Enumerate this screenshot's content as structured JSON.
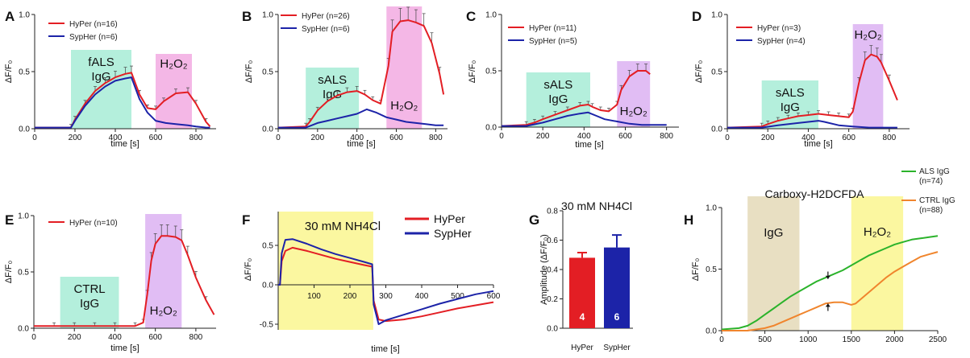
{
  "figure": {
    "colors": {
      "hyper": "#e31e24",
      "sypher": "#1c23a8",
      "als": "#2bb32b",
      "ctrl": "#f0852d",
      "green_region": "#b4efdc",
      "pink_region": "#f4b7e6",
      "violet_region": "#e1bdf4",
      "yellow_region": "#fbf7a0",
      "tan_region": "#e8dfc2"
    }
  },
  "chart_data": [
    {
      "panel": "A",
      "type": "line",
      "xlabel": "time [s]",
      "ylabel": "ΔF/F₀",
      "xlim": [
        0,
        900
      ],
      "ylim": [
        0,
        1.0
      ],
      "xticks": [
        "0",
        "200",
        "400",
        "600",
        "800"
      ],
      "yticks": [
        "0.0",
        "0.5",
        "1.0"
      ],
      "legend": [
        "HyPer (n=16)",
        "SypHer (n=6)"
      ],
      "regions": [
        {
          "label": [
            "fALS",
            "IgG"
          ],
          "x": [
            180,
            480
          ],
          "color": "green"
        },
        {
          "label": [
            "H₂O₂"
          ],
          "x": [
            600,
            780
          ],
          "color": "pink"
        }
      ],
      "series": [
        {
          "name": "HyPer",
          "x": [
            0,
            180,
            200,
            250,
            300,
            350,
            400,
            450,
            480,
            520,
            560,
            600,
            640,
            700,
            760,
            800,
            850,
            870
          ],
          "y": [
            0.01,
            0.01,
            0.08,
            0.22,
            0.33,
            0.4,
            0.45,
            0.48,
            0.49,
            0.3,
            0.18,
            0.17,
            0.24,
            0.31,
            0.32,
            0.22,
            0.06,
            0.02
          ]
        },
        {
          "name": "SypHer",
          "x": [
            0,
            180,
            200,
            250,
            300,
            350,
            400,
            450,
            480,
            520,
            560,
            600,
            650,
            700,
            760,
            800,
            850,
            870
          ],
          "y": [
            0.01,
            0.01,
            0.07,
            0.2,
            0.3,
            0.37,
            0.42,
            0.44,
            0.45,
            0.26,
            0.14,
            0.07,
            0.05,
            0.04,
            0.03,
            0.02,
            0.01,
            0.01
          ]
        }
      ]
    },
    {
      "panel": "B",
      "type": "line",
      "xlabel": "time [s]",
      "ylabel": "ΔF/F₀",
      "xlim": [
        0,
        860
      ],
      "ylim": [
        0,
        1.0
      ],
      "xticks": [
        "0",
        "200",
        "400",
        "600",
        "800"
      ],
      "yticks": [
        "0.0",
        "0.5",
        "1.0"
      ],
      "legend": [
        "HyPer (n=26)",
        "SypHer (n=6)"
      ],
      "regions": [
        {
          "label": [
            "sALS",
            "IgG"
          ],
          "x": [
            140,
            410
          ],
          "color": "green"
        },
        {
          "label": [
            "H₂O₂"
          ],
          "x": [
            550,
            730
          ],
          "color": "pink"
        }
      ],
      "series": [
        {
          "name": "HyPer",
          "x": [
            0,
            140,
            160,
            200,
            250,
            300,
            350,
            400,
            440,
            480,
            520,
            560,
            580,
            620,
            660,
            700,
            740,
            780,
            820,
            840
          ],
          "y": [
            0.01,
            0.02,
            0.06,
            0.16,
            0.24,
            0.29,
            0.32,
            0.33,
            0.3,
            0.25,
            0.22,
            0.55,
            0.85,
            0.94,
            0.95,
            0.93,
            0.9,
            0.75,
            0.48,
            0.3
          ]
        },
        {
          "name": "SypHer",
          "x": [
            0,
            140,
            200,
            250,
            300,
            350,
            400,
            450,
            500,
            550,
            600,
            650,
            700,
            750,
            800,
            840
          ],
          "y": [
            0.01,
            0.01,
            0.05,
            0.07,
            0.09,
            0.11,
            0.13,
            0.17,
            0.14,
            0.1,
            0.08,
            0.06,
            0.05,
            0.04,
            0.03,
            0.03
          ]
        }
      ]
    },
    {
      "panel": "C",
      "type": "line",
      "xlabel": "time [s]",
      "ylabel": "ΔF/F₀",
      "xlim": [
        0,
        860
      ],
      "ylim": [
        0,
        1.0
      ],
      "xticks": [
        "0",
        "200",
        "400",
        "600",
        "800"
      ],
      "yticks": [
        "0.0",
        "0.5",
        "1.0"
      ],
      "legend": [
        "HyPer (n=11)",
        "SypHer (n=5)"
      ],
      "regions": [
        {
          "label": [
            "sALS",
            "IgG"
          ],
          "x": [
            120,
            430
          ],
          "color": "green"
        },
        {
          "label": [
            "H₂O₂"
          ],
          "x": [
            560,
            720
          ],
          "color": "violet"
        }
      ],
      "series": [
        {
          "name": "HyPer",
          "x": [
            0,
            120,
            160,
            200,
            260,
            320,
            380,
            420,
            440,
            480,
            520,
            560,
            580,
            620,
            660,
            700,
            720
          ],
          "y": [
            0.01,
            0.02,
            0.04,
            0.07,
            0.11,
            0.15,
            0.19,
            0.2,
            0.18,
            0.15,
            0.14,
            0.2,
            0.33,
            0.45,
            0.5,
            0.5,
            0.47
          ]
        },
        {
          "name": "SypHer",
          "x": [
            0,
            120,
            200,
            260,
            320,
            380,
            420,
            460,
            500,
            560,
            620,
            680,
            720,
            800
          ],
          "y": [
            0.01,
            0.01,
            0.04,
            0.07,
            0.1,
            0.12,
            0.13,
            0.1,
            0.07,
            0.05,
            0.03,
            0.02,
            0.02,
            0.02
          ]
        }
      ]
    },
    {
      "panel": "D",
      "type": "line",
      "xlabel": "time [s]",
      "ylabel": "ΔF/F₀",
      "xlim": [
        0,
        900
      ],
      "ylim": [
        0,
        1.0
      ],
      "xticks": [
        "0",
        "200",
        "400",
        "600",
        "800"
      ],
      "yticks": [
        "0.0",
        "0.5",
        "1.0"
      ],
      "legend": [
        "HyPer (n=3)",
        "SypHer (n=4)"
      ],
      "regions": [
        {
          "label": [
            "sALS",
            "IgG"
          ],
          "x": [
            170,
            450
          ],
          "color": "green"
        },
        {
          "label": [
            "H₂O₂"
          ],
          "x": [
            620,
            770
          ],
          "color": "violet"
        }
      ],
      "series": [
        {
          "name": "HyPer",
          "x": [
            0,
            170,
            200,
            250,
            300,
            350,
            400,
            450,
            500,
            550,
            600,
            620,
            650,
            680,
            710,
            740,
            760,
            800,
            840
          ],
          "y": [
            0.01,
            0.02,
            0.04,
            0.07,
            0.09,
            0.11,
            0.12,
            0.13,
            0.12,
            0.11,
            0.1,
            0.15,
            0.4,
            0.6,
            0.65,
            0.63,
            0.58,
            0.42,
            0.25
          ]
        },
        {
          "name": "SypHer",
          "x": [
            0,
            170,
            250,
            350,
            450,
            480,
            550,
            620,
            700,
            800,
            840
          ],
          "y": [
            0.01,
            0.01,
            0.03,
            0.05,
            0.07,
            0.06,
            0.03,
            0.02,
            0.01,
            0.01,
            0.01
          ]
        }
      ]
    },
    {
      "panel": "E",
      "type": "line",
      "xlabel": "time [s]",
      "ylabel": "ΔF/F₀",
      "xlim": [
        0,
        900
      ],
      "ylim": [
        0,
        1.0
      ],
      "xticks": [
        "0",
        "200",
        "400",
        "600",
        "800"
      ],
      "yticks": [
        "0.0",
        "0.5",
        "1.0"
      ],
      "legend": [
        "HyPer (n=10)"
      ],
      "regions": [
        {
          "label": [
            "CTRL",
            "IgG"
          ],
          "x": [
            130,
            420
          ],
          "color": "green"
        },
        {
          "label": [
            "H₂O₂"
          ],
          "x": [
            550,
            730
          ],
          "color": "violet"
        }
      ],
      "series": [
        {
          "name": "HyPer",
          "x": [
            0,
            100,
            200,
            300,
            400,
            500,
            540,
            560,
            580,
            600,
            630,
            660,
            700,
            730,
            760,
            800,
            850,
            890
          ],
          "y": [
            0.02,
            0.02,
            0.02,
            0.02,
            0.02,
            0.02,
            0.05,
            0.3,
            0.6,
            0.75,
            0.82,
            0.82,
            0.81,
            0.78,
            0.65,
            0.45,
            0.25,
            0.12
          ]
        }
      ]
    },
    {
      "panel": "F",
      "type": "line",
      "xlabel": "time [s]",
      "ylabel": "ΔF/F₀",
      "xlim": [
        0,
        600
      ],
      "ylim": [
        -0.6,
        0.8
      ],
      "xticks": [
        "100",
        "200",
        "300",
        "400",
        "500",
        "600"
      ],
      "yticks": [
        "-0.5",
        "0.0",
        "0.5"
      ],
      "legend": [
        "HyPer",
        "SypHer"
      ],
      "regions": [
        {
          "label": [
            "30 mM NH4Cl"
          ],
          "x": [
            0,
            265
          ],
          "color": "yellow"
        }
      ],
      "series": [
        {
          "name": "HyPer",
          "x": [
            0,
            5,
            10,
            20,
            40,
            80,
            120,
            160,
            200,
            240,
            262,
            266,
            280,
            300,
            350,
            400,
            450,
            500,
            550,
            600
          ],
          "y": [
            0,
            0,
            0.3,
            0.43,
            0.47,
            0.43,
            0.38,
            0.33,
            0.29,
            0.25,
            0.23,
            -0.2,
            -0.44,
            -0.46,
            -0.44,
            -0.4,
            -0.35,
            -0.3,
            -0.26,
            -0.22
          ]
        },
        {
          "name": "SypHer",
          "x": [
            0,
            5,
            10,
            20,
            40,
            80,
            120,
            160,
            200,
            240,
            262,
            266,
            280,
            300,
            350,
            400,
            450,
            500,
            550,
            600
          ],
          "y": [
            0,
            0,
            0.4,
            0.57,
            0.58,
            0.52,
            0.45,
            0.39,
            0.34,
            0.29,
            0.26,
            -0.25,
            -0.5,
            -0.45,
            -0.38,
            -0.31,
            -0.24,
            -0.18,
            -0.12,
            -0.08
          ]
        }
      ]
    },
    {
      "panel": "G",
      "type": "bar",
      "title": "30 mM NH4Cl",
      "ylabel": "Amplitude (ΔF/F₀)",
      "ylim": [
        0,
        0.8
      ],
      "yticks": [
        "0.0",
        "0.2",
        "0.4",
        "0.6",
        "0.8"
      ],
      "categories": [
        "HyPer",
        "SypHer"
      ],
      "values": [
        0.48,
        0.55
      ],
      "errors": [
        0.035,
        0.085
      ],
      "n": [
        "4",
        "6"
      ]
    },
    {
      "panel": "H",
      "type": "line",
      "title": "Carboxy-H2DCFDA",
      "xlabel": "",
      "ylabel": "ΔF/F₀",
      "xlim": [
        0,
        2500
      ],
      "ylim": [
        0,
        1.0
      ],
      "xticks": [
        "0",
        "500",
        "1000",
        "1500",
        "2000",
        "2500"
      ],
      "yticks": [
        "0.0",
        "0.5",
        "1.0"
      ],
      "legend": [
        "ALS IgG",
        "(n=74)",
        "CTRL IgG",
        "(n=88)"
      ],
      "regions": [
        {
          "label": [
            "IgG"
          ],
          "x": [
            300,
            900
          ],
          "color": "tan"
        },
        {
          "label": [
            "H₂O₂"
          ],
          "x": [
            1500,
            2100
          ],
          "color": "yellow"
        }
      ],
      "arrows": [
        {
          "x": 1230,
          "from": 0.48,
          "to": 0.42
        },
        {
          "x": 1230,
          "from": 0.16,
          "to": 0.22
        }
      ],
      "series": [
        {
          "name": "ALS IgG",
          "x": [
            0,
            200,
            300,
            400,
            500,
            600,
            700,
            800,
            900,
            1000,
            1100,
            1200,
            1300,
            1400,
            1500,
            1600,
            1700,
            1800,
            1900,
            2000,
            2100,
            2200,
            2300,
            2400,
            2500
          ],
          "y": [
            0.01,
            0.02,
            0.04,
            0.08,
            0.13,
            0.18,
            0.23,
            0.28,
            0.32,
            0.36,
            0.4,
            0.43,
            0.46,
            0.49,
            0.53,
            0.57,
            0.61,
            0.64,
            0.67,
            0.7,
            0.72,
            0.74,
            0.75,
            0.76,
            0.77
          ]
        },
        {
          "name": "CTRL IgG",
          "x": [
            0,
            200,
            300,
            400,
            500,
            600,
            700,
            800,
            900,
            1000,
            1100,
            1200,
            1300,
            1400,
            1500,
            1550,
            1600,
            1700,
            1800,
            1900,
            2000,
            2100,
            2200,
            2300,
            2400,
            2500
          ],
          "y": [
            0.0,
            0.0,
            0.0,
            0.01,
            0.02,
            0.04,
            0.07,
            0.1,
            0.13,
            0.16,
            0.19,
            0.22,
            0.23,
            0.23,
            0.21,
            0.22,
            0.25,
            0.31,
            0.37,
            0.43,
            0.48,
            0.52,
            0.56,
            0.6,
            0.62,
            0.64
          ]
        }
      ]
    }
  ]
}
